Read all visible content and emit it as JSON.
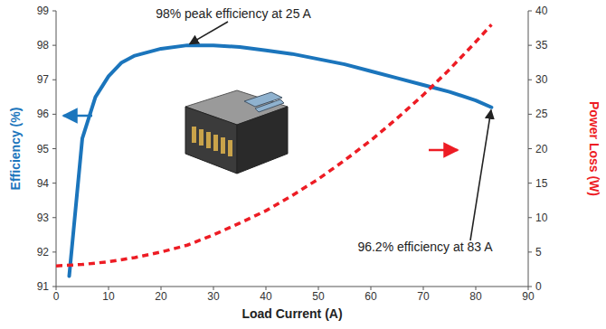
{
  "chart_data": {
    "type": "line",
    "xlabel": "Load Current (A)",
    "ylabel": "Efficiency (%)",
    "y2label": "Power Loss (W)",
    "xlim": [
      0,
      90
    ],
    "xticks": [
      0,
      10,
      20,
      30,
      40,
      50,
      60,
      70,
      80,
      90
    ],
    "ylim": [
      91,
      99
    ],
    "yticks": [
      91,
      92,
      93,
      94,
      95,
      96,
      97,
      98,
      99
    ],
    "y2lim": [
      0,
      40
    ],
    "y2ticks": [
      0,
      5,
      10,
      15,
      20,
      25,
      30,
      35,
      40
    ],
    "grid": false,
    "series": [
      {
        "color": "#1b75bc",
        "line_style": "solid",
        "x": [
          2.5,
          5,
          7.5,
          10,
          12.5,
          15,
          20,
          25,
          30,
          35,
          40,
          45,
          50,
          55,
          60,
          65,
          70,
          75,
          80,
          83
        ],
        "values": [
          91.3,
          95.3,
          96.5,
          97.1,
          97.5,
          97.7,
          97.9,
          98.0,
          98.0,
          97.95,
          97.85,
          97.75,
          97.6,
          97.45,
          97.25,
          97.05,
          96.85,
          96.65,
          96.4,
          96.2
        ]
      },
      {
        "color": "#ed1c24",
        "line_style": "dashed",
        "axis": "y2",
        "x": [
          0,
          5,
          10,
          15,
          20,
          25,
          30,
          35,
          40,
          45,
          50,
          55,
          60,
          65,
          70,
          75,
          80,
          83
        ],
        "values": [
          3.0,
          3.2,
          3.6,
          4.2,
          5.0,
          6.0,
          7.5,
          9.2,
          11.0,
          13.2,
          15.6,
          18.3,
          21.2,
          24.4,
          27.8,
          31.5,
          35.5,
          38.0
        ]
      }
    ],
    "annotations": [
      {
        "text": "98% peak efficiency at 25 A",
        "x": 25,
        "y": 98
      },
      {
        "text": "96.2% efficiency at 83 A",
        "x": 83,
        "y": 96.2
      }
    ]
  }
}
